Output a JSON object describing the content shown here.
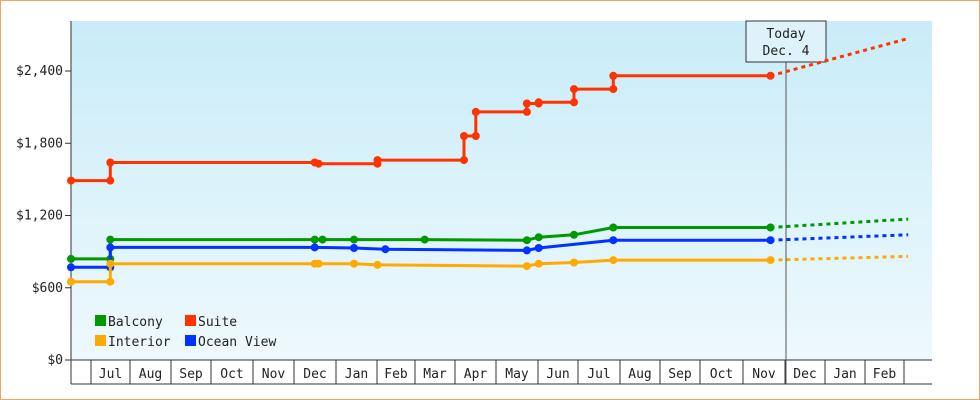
{
  "chart_data": {
    "type": "line",
    "title": "",
    "xlabel": "",
    "ylabel": "",
    "ylim": [
      0,
      2400
    ],
    "y_ticks": [
      0,
      600,
      1200,
      1800,
      2400
    ],
    "y_tick_labels": [
      "$0",
      "$600",
      "$1,200",
      "$1,800",
      "$2,400"
    ],
    "x_tick_labels": [
      "Jul",
      "Aug",
      "Sep",
      "Oct",
      "Nov",
      "Dec",
      "Jan",
      "Feb",
      "Mar",
      "Apr",
      "May",
      "Jun",
      "Jul",
      "Aug",
      "Sep",
      "Oct",
      "Nov",
      "Dec",
      "Jan",
      "Feb"
    ],
    "today_label": [
      "Today",
      "Dec. 4"
    ],
    "legend_placement": "bottom-left",
    "series": [
      {
        "name": "Suite",
        "color": "#ff3300",
        "points": [
          [
            0.0,
            1490
          ],
          [
            1.0,
            1490
          ],
          [
            1.0,
            1640
          ],
          [
            6.2,
            1640
          ],
          [
            6.3,
            1630
          ],
          [
            7.8,
            1630
          ],
          [
            7.8,
            1660
          ],
          [
            10.0,
            1660
          ],
          [
            10.0,
            1860
          ],
          [
            10.3,
            1860
          ],
          [
            10.3,
            2060
          ],
          [
            11.6,
            2060
          ],
          [
            11.6,
            2130
          ],
          [
            11.9,
            2130
          ],
          [
            11.9,
            2140
          ],
          [
            12.8,
            2140
          ],
          [
            12.8,
            2250
          ],
          [
            13.8,
            2250
          ],
          [
            13.8,
            2360
          ],
          [
            17.8,
            2360
          ]
        ],
        "projection": [
          [
            17.8,
            2360
          ],
          [
            21.3,
            2670
          ]
        ]
      },
      {
        "name": "Balcony",
        "color": "#009900",
        "points": [
          [
            0.0,
            840
          ],
          [
            1.0,
            840
          ],
          [
            1.0,
            1000
          ],
          [
            6.2,
            1000
          ],
          [
            6.4,
            1000
          ],
          [
            7.2,
            1000
          ],
          [
            9.0,
            1000
          ],
          [
            11.6,
            995
          ],
          [
            11.9,
            1020
          ],
          [
            12.8,
            1040
          ],
          [
            13.8,
            1100
          ],
          [
            17.8,
            1100
          ]
        ],
        "projection": [
          [
            17.8,
            1100
          ],
          [
            21.3,
            1170
          ]
        ]
      },
      {
        "name": "Ocean View",
        "color": "#0033ff",
        "points": [
          [
            0.0,
            770
          ],
          [
            1.0,
            770
          ],
          [
            1.0,
            935
          ],
          [
            6.2,
            935
          ],
          [
            7.2,
            930
          ],
          [
            8.0,
            920
          ],
          [
            11.6,
            910
          ],
          [
            11.9,
            930
          ],
          [
            13.8,
            995
          ],
          [
            17.8,
            995
          ]
        ],
        "projection": [
          [
            17.8,
            995
          ],
          [
            21.3,
            1040
          ]
        ]
      },
      {
        "name": "Interior",
        "color": "#ffaa00",
        "points": [
          [
            0.0,
            650
          ],
          [
            1.0,
            650
          ],
          [
            1.0,
            800
          ],
          [
            6.2,
            800
          ],
          [
            6.3,
            800
          ],
          [
            7.2,
            800
          ],
          [
            7.8,
            790
          ],
          [
            11.6,
            780
          ],
          [
            11.9,
            800
          ],
          [
            12.8,
            810
          ],
          [
            13.8,
            830
          ],
          [
            17.8,
            830
          ]
        ],
        "projection": [
          [
            17.8,
            830
          ],
          [
            21.3,
            860
          ]
        ]
      }
    ],
    "legend": [
      {
        "label": "Balcony",
        "color": "#009900"
      },
      {
        "label": "Suite",
        "color": "#ff3300"
      },
      {
        "label": "Interior",
        "color": "#ffaa00"
      },
      {
        "label": "Ocean View",
        "color": "#0033ff"
      }
    ]
  }
}
